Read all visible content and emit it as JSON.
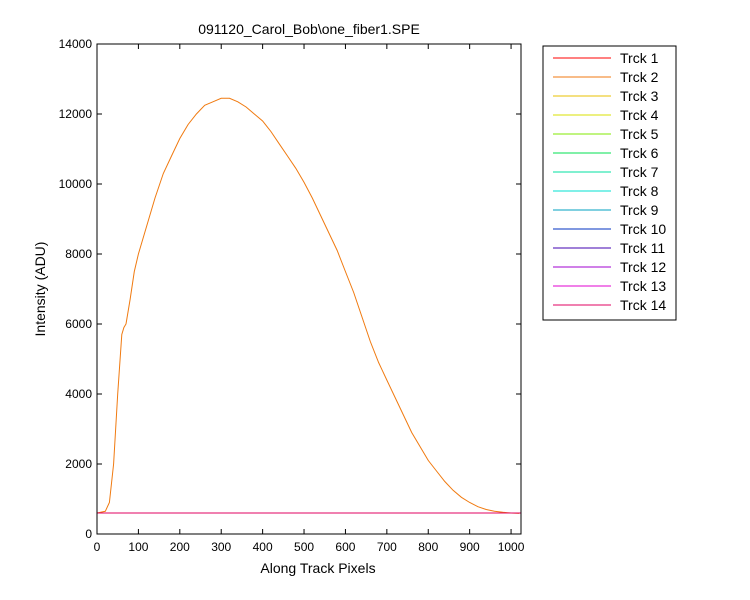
{
  "window": {
    "background": "#ffffff"
  },
  "chart_data": {
    "type": "line",
    "title": "091120_Carol_Bob\\one_fiber1.SPE",
    "xlabel": "Along Track Pixels",
    "ylabel": "Intensity (ADU)",
    "xlim": [
      0,
      1024
    ],
    "ylim": [
      0,
      14000
    ],
    "xticks": [
      0,
      100,
      200,
      300,
      400,
      500,
      600,
      700,
      800,
      900,
      1000
    ],
    "yticks": [
      0,
      2000,
      4000,
      6000,
      8000,
      10000,
      12000,
      14000
    ],
    "grid": false,
    "legend_placement": "outside-right",
    "series": [
      {
        "name": "Trck 1",
        "color": "#ff0000",
        "values": {
          "x": [
            0,
            1024
          ],
          "y": [
            600,
            600
          ]
        }
      },
      {
        "name": "Trck 2",
        "color": "#f07a10",
        "values": {
          "x": [
            0,
            20,
            30,
            40,
            50,
            60,
            65,
            70,
            80,
            90,
            100,
            120,
            140,
            160,
            180,
            200,
            220,
            240,
            260,
            280,
            300,
            320,
            340,
            360,
            380,
            400,
            420,
            440,
            460,
            480,
            500,
            520,
            540,
            560,
            580,
            600,
            620,
            640,
            660,
            680,
            700,
            720,
            740,
            760,
            780,
            800,
            820,
            840,
            860,
            880,
            900,
            920,
            940,
            960,
            980,
            1000,
            1020
          ],
          "y": [
            600,
            650,
            900,
            2000,
            4000,
            5700,
            5900,
            6000,
            6700,
            7500,
            8000,
            8800,
            9600,
            10300,
            10800,
            11300,
            11700,
            12000,
            12250,
            12350,
            12450,
            12450,
            12350,
            12200,
            12000,
            11800,
            11500,
            11150,
            10800,
            10450,
            10050,
            9600,
            9100,
            8600,
            8100,
            7500,
            6900,
            6200,
            5500,
            4900,
            4400,
            3900,
            3400,
            2900,
            2500,
            2100,
            1800,
            1500,
            1250,
            1050,
            900,
            780,
            700,
            650,
            620,
            600,
            590
          ]
        }
      },
      {
        "name": "Trck 3",
        "color": "#e8c000",
        "values": {
          "x": [
            0,
            1024
          ],
          "y": [
            600,
            600
          ]
        }
      },
      {
        "name": "Trck 4",
        "color": "#d8e000",
        "values": {
          "x": [
            0,
            1024
          ],
          "y": [
            600,
            600
          ]
        }
      },
      {
        "name": "Trck 5",
        "color": "#80e800",
        "values": {
          "x": [
            0,
            1024
          ],
          "y": [
            600,
            600
          ]
        }
      },
      {
        "name": "Trck 6",
        "color": "#00e050",
        "values": {
          "x": [
            0,
            1024
          ],
          "y": [
            600,
            600
          ]
        }
      },
      {
        "name": "Trck 7",
        "color": "#00e0a0",
        "values": {
          "x": [
            0,
            1024
          ],
          "y": [
            600,
            600
          ]
        }
      },
      {
        "name": "Trck 8",
        "color": "#00e0d0",
        "values": {
          "x": [
            0,
            1024
          ],
          "y": [
            600,
            600
          ]
        }
      },
      {
        "name": "Trck 9",
        "color": "#00a0c0",
        "values": {
          "x": [
            0,
            1024
          ],
          "y": [
            600,
            600
          ]
        }
      },
      {
        "name": "Trck 10",
        "color": "#0030c0",
        "values": {
          "x": [
            0,
            1024
          ],
          "y": [
            600,
            600
          ]
        }
      },
      {
        "name": "Trck 11",
        "color": "#4000b0",
        "values": {
          "x": [
            0,
            1024
          ],
          "y": [
            600,
            600
          ]
        }
      },
      {
        "name": "Trck 12",
        "color": "#a000d0",
        "values": {
          "x": [
            0,
            1024
          ],
          "y": [
            600,
            600
          ]
        }
      },
      {
        "name": "Trck 13",
        "color": "#e000d0",
        "values": {
          "x": [
            0,
            1024
          ],
          "y": [
            600,
            600
          ]
        }
      },
      {
        "name": "Trck 14",
        "color": "#e00060",
        "values": {
          "x": [
            0,
            1024
          ],
          "y": [
            600,
            600
          ]
        }
      }
    ]
  }
}
